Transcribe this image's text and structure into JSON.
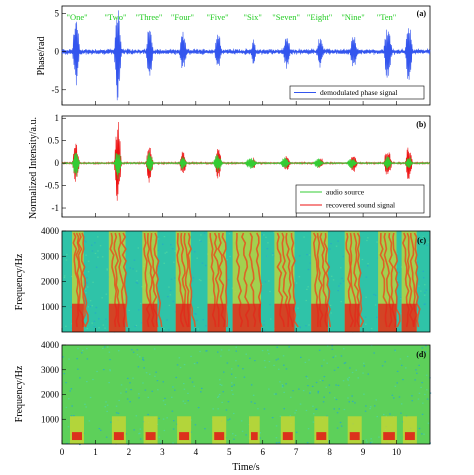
{
  "chart_data": [
    {
      "panel": "(a)",
      "type": "line",
      "ylabel": "Phase/rad",
      "xlim": [
        0,
        11
      ],
      "ylim": [
        -7,
        6
      ],
      "yticks": [
        5,
        0,
        -5
      ],
      "words": [
        "\"One\"",
        "\"Two\"",
        "\"Three\"",
        "\"Four\"",
        "\"Five\"",
        "\"Six\"",
        "\"Seven\"",
        "\"Eight\"",
        "\"Nine\"",
        "\"Ten\""
      ],
      "word_positions": [
        0.45,
        1.6,
        2.6,
        3.6,
        4.65,
        5.7,
        6.7,
        7.7,
        8.7,
        9.7
      ],
      "series": [
        {
          "name": "demodulated phase signal",
          "color": "#3355ee",
          "bursts": [
            [
              0.3,
              0.6,
              4.5
            ],
            [
              1.55,
              1.85,
              6.5
            ],
            [
              2.5,
              2.8,
              3.2
            ],
            [
              3.5,
              3.8,
              2.2
            ],
            [
              4.55,
              4.85,
              2.2
            ],
            [
              5.65,
              5.85,
              1.5
            ],
            [
              6.6,
              6.9,
              2.0
            ],
            [
              7.6,
              7.9,
              1.8
            ],
            [
              8.6,
              8.9,
              2.0
            ],
            [
              9.6,
              9.95,
              3.2
            ],
            [
              10.25,
              10.55,
              4.0
            ]
          ],
          "noise": 0.3
        }
      ],
      "legend": "bottom-right"
    },
    {
      "panel": "(b)",
      "type": "line",
      "ylabel": "Normalized Intensity/a.u.",
      "xlim": [
        0,
        11
      ],
      "ylim": [
        -1.2,
        1.05
      ],
      "yticks": [
        1,
        0.5,
        0,
        -0.5,
        -1
      ],
      "series": [
        {
          "name": "audio source",
          "color": "#33cc33",
          "bursts": [
            [
              0.3,
              0.6,
              0.3
            ],
            [
              1.55,
              1.85,
              0.35
            ],
            [
              2.5,
              2.8,
              0.25
            ],
            [
              3.5,
              3.8,
              0.15
            ],
            [
              4.5,
              4.9,
              0.2
            ],
            [
              5.45,
              5.95,
              0.12
            ],
            [
              6.5,
              6.9,
              0.12
            ],
            [
              7.5,
              7.9,
              0.1
            ],
            [
              8.5,
              8.9,
              0.12
            ],
            [
              9.6,
              9.95,
              0.15
            ],
            [
              10.25,
              10.55,
              0.15
            ]
          ],
          "noise": 0.01
        },
        {
          "name": "recovered sound signal",
          "color": "#ee1111",
          "bursts": [
            [
              0.3,
              0.6,
              0.45
            ],
            [
              1.55,
              1.85,
              0.95
            ],
            [
              2.5,
              2.8,
              0.45
            ],
            [
              3.5,
              3.8,
              0.25
            ],
            [
              4.55,
              4.85,
              0.35
            ],
            [
              5.65,
              5.85,
              0.12
            ],
            [
              6.6,
              6.9,
              0.15
            ],
            [
              7.6,
              7.9,
              0.12
            ],
            [
              8.6,
              8.9,
              0.2
            ],
            [
              9.6,
              9.95,
              0.3
            ],
            [
              10.25,
              10.55,
              0.4
            ]
          ],
          "noise": 0.015
        }
      ],
      "legend": "bottom-right"
    },
    {
      "panel": "(c)",
      "type": "heatmap",
      "ylabel": "Frequency/Hz",
      "xlim": [
        0,
        11
      ],
      "ylim": [
        0,
        4000
      ],
      "yticks": [
        4000,
        3000,
        2000,
        1000
      ],
      "events": [
        [
          0.3,
          0.65
        ],
        [
          1.4,
          1.9
        ],
        [
          2.4,
          2.85
        ],
        [
          3.4,
          3.85
        ],
        [
          4.35,
          4.9
        ],
        [
          5.1,
          5.95
        ],
        [
          6.35,
          6.95
        ],
        [
          7.45,
          7.95
        ],
        [
          8.45,
          8.9
        ],
        [
          9.45,
          10.0
        ],
        [
          10.15,
          10.6
        ]
      ],
      "background": "#2fc3a8"
    },
    {
      "panel": "(d)",
      "type": "heatmap",
      "ylabel": "Frequency/Hz",
      "xlabel": "Time/s",
      "xlim": [
        0,
        11
      ],
      "ylim": [
        0,
        4000
      ],
      "yticks": [
        4000,
        3000,
        2000,
        1000
      ],
      "xticks": [
        0,
        1,
        2,
        3,
        4,
        5,
        6,
        7,
        8,
        9,
        10
      ],
      "events": [
        [
          0.3,
          0.6
        ],
        [
          1.55,
          1.85
        ],
        [
          2.5,
          2.8
        ],
        [
          3.5,
          3.8
        ],
        [
          4.55,
          4.85
        ],
        [
          5.65,
          5.85
        ],
        [
          6.6,
          6.9
        ],
        [
          7.6,
          7.9
        ],
        [
          8.6,
          8.9
        ],
        [
          9.6,
          9.95
        ],
        [
          10.25,
          10.55
        ]
      ],
      "background": "#5dd05a"
    }
  ]
}
